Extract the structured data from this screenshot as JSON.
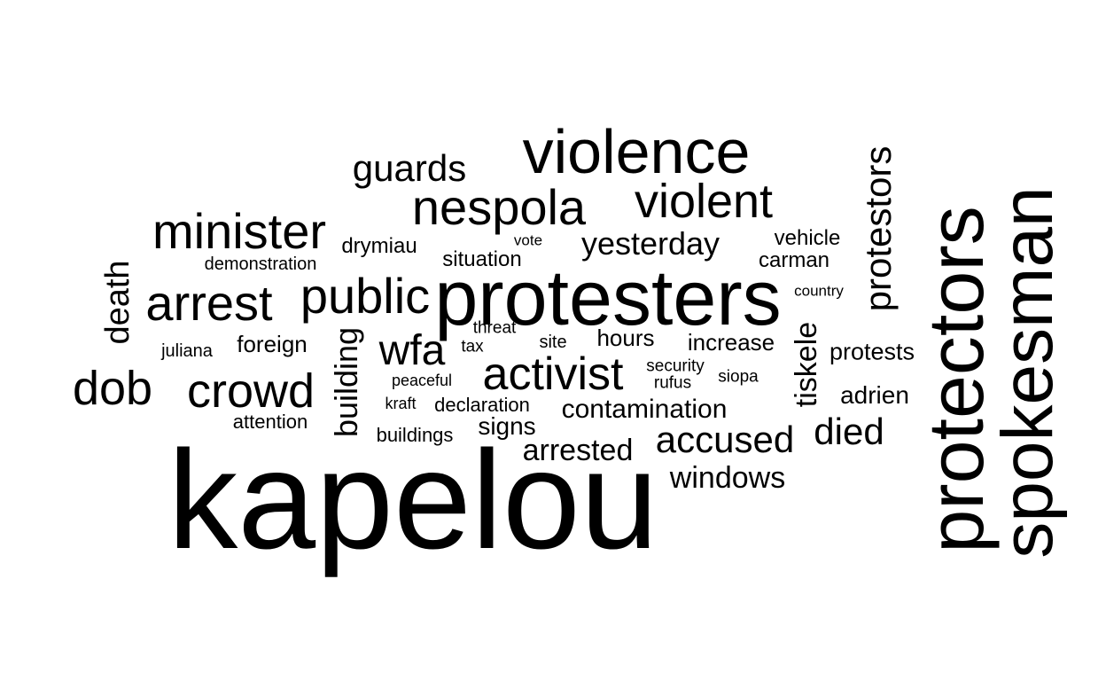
{
  "words": {
    "kapelou": "kapelou",
    "protesters": "protesters",
    "violence": "violence",
    "spokesman": "spokesman",
    "protectors": "protectors",
    "nespola": "nespola",
    "violent": "violent",
    "minister": "minister",
    "arrest": "arrest",
    "public": "public",
    "crowd": "crowd",
    "dob": "dob",
    "activist": "activist",
    "wfa": "wfa",
    "accused": "accused",
    "died": "died",
    "guards": "guards",
    "yesterday": "yesterday",
    "protestors": "protestors",
    "arrested": "arrested",
    "windows": "windows",
    "contamination": "contamination",
    "tiskele": "tiskele",
    "death": "death",
    "building": "building",
    "adrien": "adrien",
    "protests": "protests",
    "increase": "increase",
    "hours": "hours",
    "signs": "signs",
    "foreign": "foreign",
    "drymiau": "drymiau",
    "situation": "situation",
    "vehicle": "vehicle",
    "carman": "carman",
    "buildings": "buildings",
    "declaration": "declaration",
    "attention": "attention",
    "demonstration": "demonstration",
    "juliana": "juliana",
    "site": "site",
    "threat": "threat",
    "tax": "tax",
    "security": "security",
    "rufus": "rufus",
    "siopa": "siopa",
    "peaceful": "peaceful",
    "kraft": "kraft",
    "vote": "vote",
    "country": "country"
  },
  "colors": {
    "text": "#000000",
    "background": "#ffffff"
  }
}
